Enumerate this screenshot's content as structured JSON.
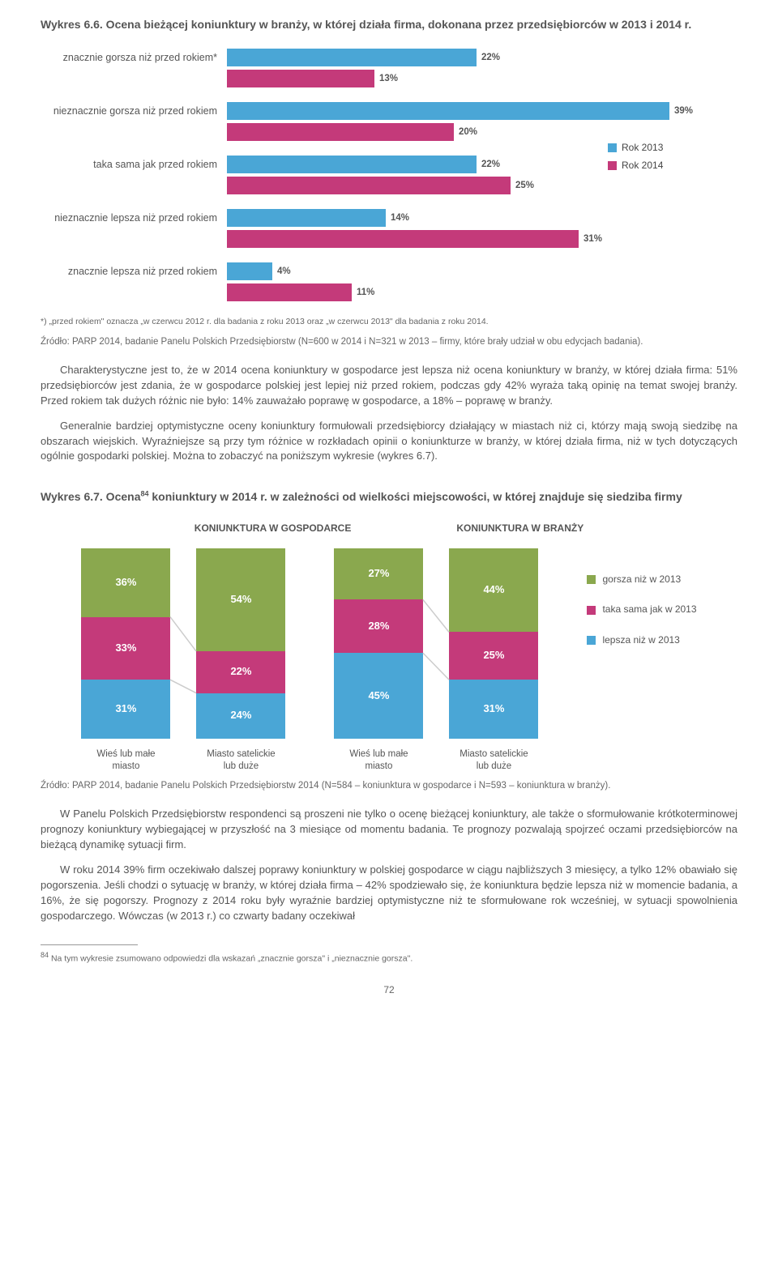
{
  "chart66": {
    "title": "Wykres 6.6. Ocena bieżącej koniunktury w branży, w której działa firma, dokonana przez przedsiębiorców w 2013 i 2014 r.",
    "type": "bar_horizontal_grouped",
    "chart_max": 45,
    "color_2013": "#4aa6d6",
    "color_2014": "#c43a7a",
    "bg": "#ffffff",
    "font_label": 12,
    "font_value": 11,
    "categories": [
      {
        "label": "znacznie gorsza niż przed rokiem*",
        "v2013": 22,
        "v2014": 13
      },
      {
        "label": "nieznacznie gorsza niż przed rokiem",
        "v2013": 39,
        "v2014": 20
      },
      {
        "label": "taka sama jak przed rokiem",
        "v2013": 22,
        "v2014": 25
      },
      {
        "label": "nieznacznie lepsza niż przed rokiem",
        "v2013": 14,
        "v2014": 31
      },
      {
        "label": "znacznie lepsza niż przed rokiem",
        "v2013": 4,
        "v2014": 11
      }
    ],
    "legend": [
      {
        "label": "Rok 2013",
        "color": "#4aa6d6"
      },
      {
        "label": "Rok 2014",
        "color": "#c43a7a"
      }
    ],
    "footnote": "*) „przed rokiem\" oznacza „w czerwcu 2012 r. dla badania z roku 2013  oraz „w czerwcu 2013\" dla badania z roku 2014.",
    "source": "Źródło:  PARP 2014, badanie Panelu Polskich Przedsiębiorstw (N=600 w 2014 i N=321 w 2013 – firmy, które brały udział w obu edycjach badania)."
  },
  "body": {
    "p1": "Charakterystyczne jest to, że w 2014 ocena koniunktury w gospodarce jest lepsza niż ocena koniunktury w branży, w której działa firma: 51% przedsiębiorców jest zdania, że w gospodarce polskiej jest lepiej niż przed rokiem, podczas gdy 42% wyraża taką opinię na temat swojej branży. Przed rokiem tak dużych różnic nie było: 14% zauważało poprawę w gospodarce, a 18% – poprawę w branży.",
    "p2": "Generalnie bardziej optymistyczne oceny koniunktury formułowali przedsiębiorcy działający w miastach niż ci, którzy mają swoją siedzibę na obszarach wiejskich. Wyraźniejsze są przy tym różnice w rozkładach opinii o koniunkturze w branży, w której działa firma, niż w tych dotyczących ogólnie gospodarki polskiej. Można to zobaczyć na poniższym wykresie (wykres 6.7)."
  },
  "chart67": {
    "title_prefix": "Wykres 6.7. Ocena",
    "title_sup": "84",
    "title_suffix": " koniunktury w 2014 r. w zależności od wielkości miejscowości, w której znajduje się siedziba firmy",
    "type": "stacked_bar",
    "header_left": "KONIUNKTURA  W  GOSPODARCE",
    "header_right": "KONIUNKTURA  W  BRANŻY",
    "colors": {
      "gorsza": "#8aa84e",
      "taka_sama": "#c43a7a",
      "lepsza": "#4aa6d6"
    },
    "connector_color": "#cccccc",
    "columns": [
      {
        "xlabel1": "Wieś lub małe",
        "xlabel2": "miasto",
        "gorsza": 36,
        "taka_sama": 33,
        "lepsza": 31
      },
      {
        "xlabel1": "Miasto satelickie",
        "xlabel2": "lub duże",
        "gorsza": 54,
        "taka_sama": 22,
        "lepsza": 24
      },
      {
        "xlabel1": "Wieś lub małe",
        "xlabel2": "miasto",
        "gorsza": 27,
        "taka_sama": 28,
        "lepsza": 45
      },
      {
        "xlabel1": "Miasto satelickie",
        "xlabel2": "lub duże",
        "gorsza": 44,
        "taka_sama": 25,
        "lepsza": 31
      }
    ],
    "legend": [
      {
        "label": "gorsza niż w 2013",
        "color": "#8aa84e"
      },
      {
        "label": "taka sama jak w 2013",
        "color": "#c43a7a"
      },
      {
        "label": "lepsza niż w 2013",
        "color": "#4aa6d6"
      }
    ],
    "source": "Źródło:  PARP 2014, badanie Panelu Polskich Przedsiębiorstw 2014 (N=584 – koniunktura w gospodarce i N=593 – koniunktura w branży)."
  },
  "body2": {
    "p1": "W Panelu Polskich Przedsiębiorstw respondenci są proszeni nie tylko o ocenę bieżącej koniunktury, ale także o sformułowanie krótkoterminowej prognozy koniunktury wybiegającej w przyszłość na 3 miesiące od momentu badania. Te prognozy pozwalają spojrzeć oczami przedsiębiorców na bieżącą dynamikę sytuacji firm.",
    "p2": "W roku 2014 39% firm oczekiwało dalszej poprawy koniunktury w polskiej gospodarce w ciągu najbliższych 3 miesięcy, a tylko 12% obawiało się pogorszenia. Jeśli chodzi o sytuację w branży, w której działa firma – 42% spodziewało się, że koniunktura będzie lepsza niż w momencie badania, a 16%, że się pogorszy. Prognozy z 2014 roku były wyraźnie bardziej optymistyczne niż te sformułowane rok wcześniej, w sytuacji spowolnienia gospodarczego. Wówczas (w 2013 r.) co czwarty badany oczekiwał"
  },
  "bottom_footnote": {
    "marker": "84",
    "text": "Na tym wykresie zsumowano odpowiedzi dla wskazań „znacznie gorsza\" i „nieznacznie gorsza\"."
  },
  "page_num": "72"
}
